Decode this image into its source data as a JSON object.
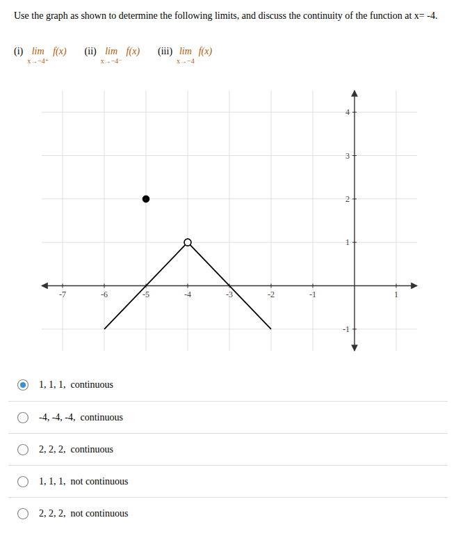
{
  "chart_data": {
    "type": "line",
    "title": "Use the graph as shown to determine the following limits, and discuss the continuity of the function at x= -4.",
    "annotations": [
      "(i)",
      "lim",
      "x→−4⁺",
      "f(x)",
      "(ii)",
      "lim",
      "x→−4⁻",
      "f(x)",
      "(iii)",
      "lim",
      "x→−4",
      "f(x)"
    ],
    "series": [
      {
        "x": [
          -6,
          -4
        ],
        "values": [
          -1,
          1
        ],
        "color": "#000000"
      },
      {
        "x": [
          -4,
          -2
        ],
        "values": [
          1,
          -1
        ],
        "color": "#000000"
      },
      {
        "type": "scatter",
        "x": [
          -4
        ],
        "values": [
          1
        ],
        "marker": "circle-open",
        "color": "#000000"
      },
      {
        "type": "scatter",
        "x": [
          -5
        ],
        "values": [
          2
        ],
        "marker": "circle",
        "color": "#000000"
      }
    ],
    "xlim": [
      -7.5,
      1.5
    ],
    "ylim": [
      -1.5,
      4.5
    ],
    "xticks": [
      -7,
      -6,
      -5,
      -4,
      -3,
      -2,
      -1,
      1
    ],
    "yticks": [
      -1,
      1,
      2,
      3,
      4
    ],
    "grid": true,
    "options": [
      {
        "selected": true,
        "text": "1, 1, 1,  continuous"
      },
      {
        "selected": false,
        "text": "-4, -4, -4,  continuous"
      },
      {
        "selected": false,
        "text": "2, 2, 2,  continuous"
      },
      {
        "selected": false,
        "text": "1, 1, 1,  not continuous"
      },
      {
        "selected": false,
        "text": "2, 2, 2,  not continuous"
      }
    ]
  }
}
